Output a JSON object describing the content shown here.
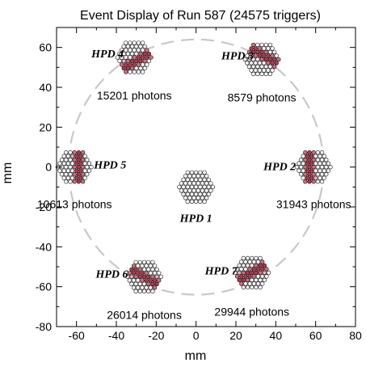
{
  "chart_data": {
    "type": "scatter",
    "title": "Event Display of Run 587  (24575 triggers)",
    "xlabel": "mm",
    "ylabel": "mm",
    "xlim": [
      -70,
      80
    ],
    "ylim": [
      -80,
      70
    ],
    "x_ticks": [
      -60,
      -40,
      -20,
      0,
      20,
      40,
      60,
      80
    ],
    "y_ticks": [
      -80,
      -60,
      -40,
      -20,
      0,
      20,
      40,
      60
    ],
    "grid": false,
    "ring": {
      "center": [
        0,
        0
      ],
      "radius": 64,
      "style": "dashed",
      "color": "#c8c8c8"
    },
    "hpds": [
      {
        "id": "hpd4",
        "label": "HPD 4",
        "x": -31,
        "y": 55,
        "photons_label": "15201 photons",
        "band_angle": -30,
        "band_offset": 1
      },
      {
        "id": "hpd3",
        "label": "HPD 3",
        "x": 33,
        "y": 54,
        "photons_label": "8579 photons",
        "band_angle": 30,
        "band_offset": -1
      },
      {
        "id": "hpd5",
        "label": "HPD 5",
        "x": -61,
        "y": 0,
        "photons_label": "10613 photons",
        "band_angle": 90,
        "band_offset": -1
      },
      {
        "id": "hpd1",
        "label": "HPD 1",
        "x": 0,
        "y": -10,
        "photons_label": "",
        "band_angle": null,
        "band_offset": 0
      },
      {
        "id": "hpd2",
        "label": "HPD 2",
        "x": 59,
        "y": 0,
        "photons_label": "31943 photons",
        "band_angle": 90,
        "band_offset": 1
      },
      {
        "id": "hpd6",
        "label": "HPD 6",
        "x": -26,
        "y": -55,
        "photons_label": "26014 photons",
        "band_angle": 30,
        "band_offset": 0
      },
      {
        "id": "hpd7",
        "label": "HPD 7",
        "x": 28,
        "y": -53,
        "photons_label": "29944 photons",
        "band_angle": -30,
        "band_offset": 0
      }
    ],
    "colors": {
      "frame": "#000000",
      "hit_strong": "#b23a4d",
      "hit_medium": "#d4707f",
      "hit_light": "#e8b4c8",
      "pixel_empty": "#ffffff"
    }
  }
}
